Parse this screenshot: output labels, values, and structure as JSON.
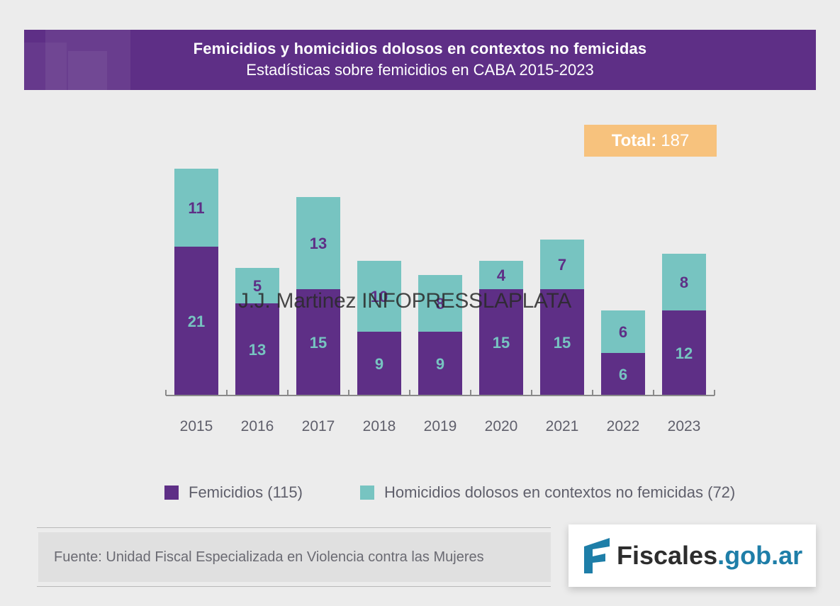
{
  "header": {
    "title": "Femicidios y homicidios dolosos en contextos no femicidas",
    "subtitle": "Estadísticas sobre femicidios en CABA 2015-2023"
  },
  "total": {
    "label": "Total:",
    "value": "187"
  },
  "watermark": "J.J. Martinez INFOPRESSLAPLATA",
  "chart_data": {
    "type": "bar",
    "stacked": true,
    "categories": [
      "2015",
      "2016",
      "2017",
      "2018",
      "2019",
      "2020",
      "2021",
      "2022",
      "2023"
    ],
    "series": [
      {
        "name": "Femicidios",
        "color": "#5e2f86",
        "values": [
          21,
          13,
          15,
          9,
          9,
          15,
          15,
          6,
          12
        ]
      },
      {
        "name": "Homicidios dolosos en contextos no femicidas",
        "color": "#77c4c1",
        "values": [
          11,
          5,
          13,
          10,
          8,
          4,
          7,
          6,
          8
        ]
      }
    ],
    "ylim": [
      0,
      32
    ],
    "grid": false,
    "legend_position": "bottom"
  },
  "legend": {
    "femicidios": "Femicidios (115)",
    "homicidios": "Homicidios dolosos en contextos no femicidas (72)"
  },
  "source": "Fuente: Unidad Fiscal Especializada en Violencia contra las Mujeres",
  "logo": {
    "part1": "Fiscales",
    "part2": ".gob.ar"
  },
  "colors": {
    "purple": "#5e2f86",
    "teal": "#77c4c1",
    "orange": "#f7c27d"
  }
}
